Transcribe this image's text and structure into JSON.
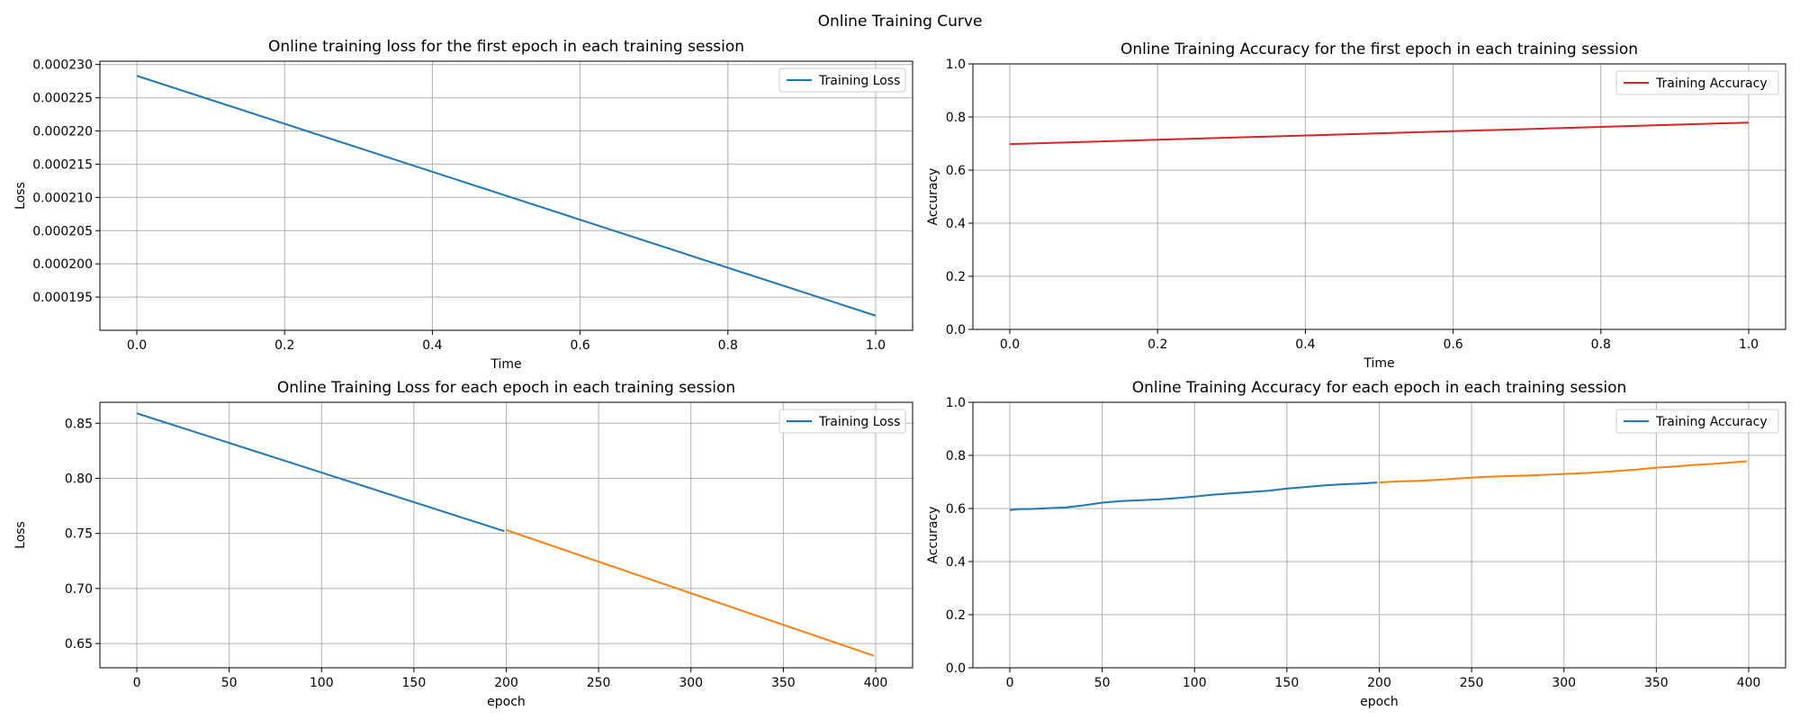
{
  "figure": {
    "suptitle": "Online Training Curve"
  },
  "chart_data": [
    {
      "type": "line",
      "title": "Online training loss for the first epoch in each training session",
      "xlabel": "Time",
      "ylabel": "Loss",
      "xlim": [
        -0.05,
        1.05
      ],
      "ylim": [
        0.00019,
        0.0002305
      ],
      "xticks": [
        0.0,
        0.2,
        0.4,
        0.6,
        0.8,
        1.0
      ],
      "xtick_labels": [
        "0.0",
        "0.2",
        "0.4",
        "0.6",
        "0.8",
        "1.0"
      ],
      "yticks": [
        0.000195,
        0.0002,
        0.000205,
        0.00021,
        0.000215,
        0.00022,
        0.000225,
        0.00023
      ],
      "ytick_labels": [
        "0.000195",
        "0.000200",
        "0.000205",
        "0.000210",
        "0.000215",
        "0.000220",
        "0.000225",
        "0.000230"
      ],
      "grid": true,
      "legend": {
        "loc": "top-right",
        "entries": [
          {
            "label": "Training Loss",
            "color": "#1f77b4"
          }
        ]
      },
      "series": [
        {
          "name": "Training Loss",
          "color": "#1f77b4",
          "x": [
            0,
            1
          ],
          "y": [
            0.0002283,
            0.0001922
          ]
        }
      ]
    },
    {
      "type": "line",
      "title": "Online Training Accuracy for the first epoch in each training session",
      "xlabel": "Time",
      "ylabel": "Accuracy",
      "xlim": [
        -0.05,
        1.05
      ],
      "ylim": [
        0.0,
        1.0
      ],
      "xticks": [
        0.0,
        0.2,
        0.4,
        0.6,
        0.8,
        1.0
      ],
      "xtick_labels": [
        "0.0",
        "0.2",
        "0.4",
        "0.6",
        "0.8",
        "1.0"
      ],
      "yticks": [
        0.0,
        0.2,
        0.4,
        0.6,
        0.8,
        1.0
      ],
      "ytick_labels": [
        "0.0",
        "0.2",
        "0.4",
        "0.6",
        "0.8",
        "1.0"
      ],
      "grid": true,
      "legend": {
        "loc": "top-right",
        "entries": [
          {
            "label": "Training Accuracy",
            "color": "#d62728"
          }
        ]
      },
      "series": [
        {
          "name": "Training Accuracy",
          "color": "#d62728",
          "x": [
            0,
            1
          ],
          "y": [
            0.698,
            0.779
          ]
        }
      ]
    },
    {
      "type": "line",
      "title": "Online Training Loss for each epoch in each training session",
      "xlabel": "epoch",
      "ylabel": "Loss",
      "xlim": [
        -20,
        420
      ],
      "ylim": [
        0.628,
        0.869
      ],
      "xticks": [
        0,
        50,
        100,
        150,
        200,
        250,
        300,
        350,
        400
      ],
      "xtick_labels": [
        "0",
        "50",
        "100",
        "150",
        "200",
        "250",
        "300",
        "350",
        "400"
      ],
      "yticks": [
        0.65,
        0.7,
        0.75,
        0.8,
        0.85
      ],
      "ytick_labels": [
        "0.65",
        "0.70",
        "0.75",
        "0.80",
        "0.85"
      ],
      "grid": true,
      "legend": {
        "loc": "top-right",
        "entries": [
          {
            "label": "Training Loss",
            "color": "#1f77b4"
          }
        ]
      },
      "series": [
        {
          "color": "#1f77b4",
          "x": [
            0,
            199
          ],
          "y": [
            0.859,
            0.752
          ]
        },
        {
          "color": "#ff7f0e",
          "x": [
            200,
            399
          ],
          "y": [
            0.753,
            0.639
          ]
        }
      ]
    },
    {
      "type": "line",
      "title": "Online Training Accuracy for each epoch in each training session",
      "xlabel": "epoch",
      "ylabel": "Accuracy",
      "xlim": [
        -20,
        420
      ],
      "ylim": [
        0.0,
        1.0
      ],
      "xticks": [
        0,
        50,
        100,
        150,
        200,
        250,
        300,
        350,
        400
      ],
      "xtick_labels": [
        "0",
        "50",
        "100",
        "150",
        "200",
        "250",
        "300",
        "350",
        "400"
      ],
      "yticks": [
        0.0,
        0.2,
        0.4,
        0.6,
        0.8,
        1.0
      ],
      "ytick_labels": [
        "0.0",
        "0.2",
        "0.4",
        "0.6",
        "0.8",
        "1.0"
      ],
      "grid": true,
      "legend": {
        "loc": "top-right",
        "entries": [
          {
            "label": "Training Accuracy",
            "color": "#1f77b4"
          }
        ]
      },
      "series": [
        {
          "color": "#1f77b4",
          "x": [
            0,
            5,
            10,
            20,
            30,
            40,
            50,
            60,
            70,
            80,
            90,
            100,
            110,
            120,
            130,
            140,
            150,
            160,
            170,
            180,
            190,
            199
          ],
          "y": [
            0.594,
            0.598,
            0.598,
            0.601,
            0.604,
            0.612,
            0.622,
            0.628,
            0.631,
            0.634,
            0.639,
            0.645,
            0.652,
            0.657,
            0.662,
            0.667,
            0.675,
            0.681,
            0.687,
            0.691,
            0.694,
            0.698
          ]
        },
        {
          "color": "#ff7f0e",
          "x": [
            200,
            210,
            220,
            230,
            240,
            250,
            260,
            270,
            280,
            290,
            300,
            310,
            320,
            330,
            340,
            350,
            360,
            370,
            380,
            390,
            399
          ],
          "y": [
            0.698,
            0.702,
            0.704,
            0.707,
            0.712,
            0.716,
            0.72,
            0.722,
            0.724,
            0.727,
            0.73,
            0.733,
            0.737,
            0.742,
            0.747,
            0.754,
            0.758,
            0.764,
            0.768,
            0.773,
            0.778
          ]
        }
      ]
    }
  ]
}
